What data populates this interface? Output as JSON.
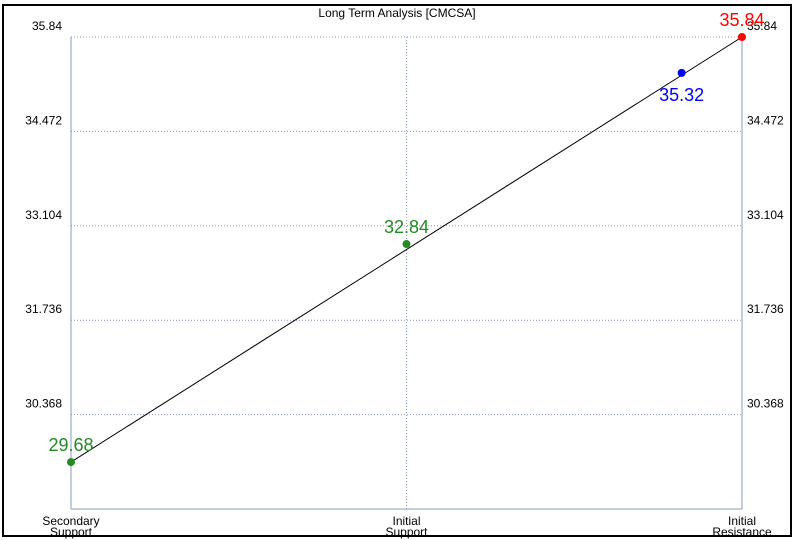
{
  "chart_data": {
    "type": "line",
    "title": "Long Term Analysis [CMCSA]",
    "categories": [
      "Secondary\nSupport",
      "Initial\nSupport",
      "Initial\nResistance"
    ],
    "ylim": [
      29.0,
      35.84
    ],
    "y_ticks": [
      "35.84",
      "34.472",
      "33.104",
      "31.736",
      "30.368"
    ],
    "grid": true,
    "line": {
      "x": [
        0,
        2
      ],
      "values": [
        29.68,
        35.84
      ],
      "color": "#000000"
    },
    "points": [
      {
        "x": 0,
        "value": 29.68,
        "label": "29.68",
        "color": "#228B22",
        "label_pos": "above"
      },
      {
        "x": 1,
        "value": 32.84,
        "label": "32.84",
        "color": "#228B22",
        "label_pos": "above"
      },
      {
        "x": 1.82,
        "value": 35.32,
        "label": "35.32",
        "color": "#0000FF",
        "label_pos": "below"
      },
      {
        "x": 2,
        "value": 35.84,
        "label": "35.84",
        "color": "#FF0000",
        "label_pos": "above"
      }
    ]
  }
}
